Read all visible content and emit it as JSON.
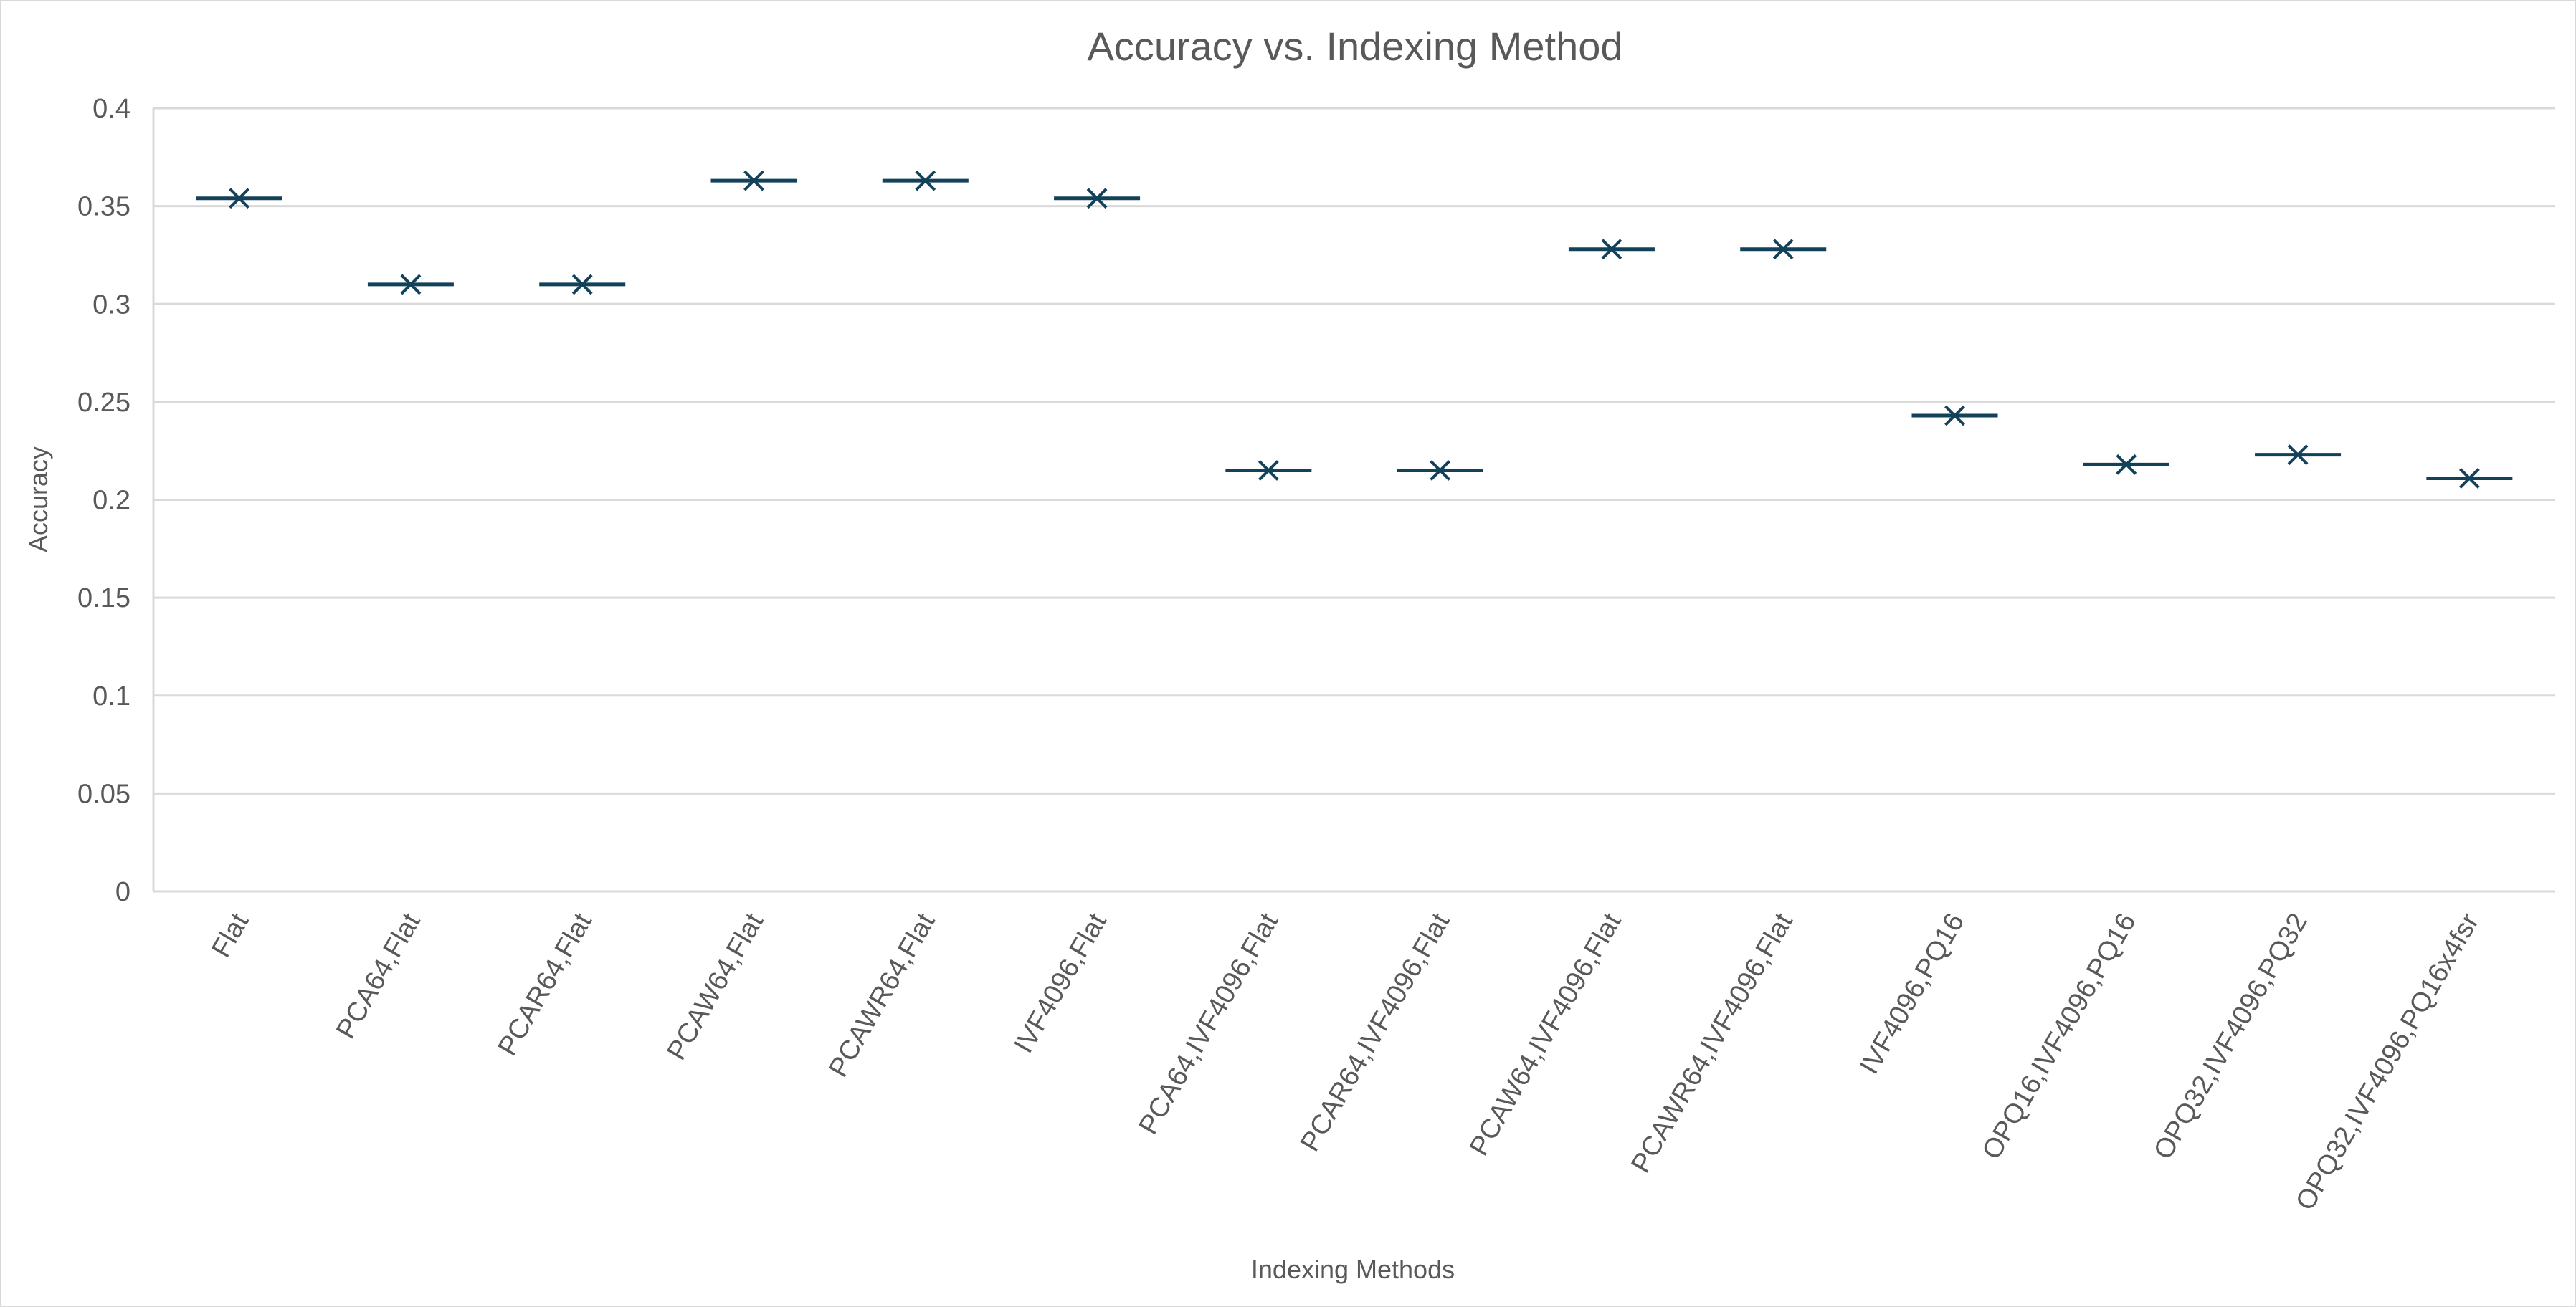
{
  "chart_data": {
    "type": "scatter",
    "title": "Accuracy vs. Indexing Method",
    "xlabel": "Indexing Methods",
    "ylabel": "Accuracy",
    "ylim": [
      0,
      0.4
    ],
    "yticks": [
      "0",
      "0.05",
      "0.1",
      "0.15",
      "0.2",
      "0.25",
      "0.3",
      "0.35",
      "0.4"
    ],
    "grid": true,
    "legend": "none",
    "marker": "x-with-horizontal-bar",
    "series_color": "#12425a",
    "categories": [
      "Flat",
      "PCA64,Flat",
      "PCAR64,Flat",
      "PCAW64,Flat",
      "PCAWR64,Flat",
      "IVF4096,Flat",
      "PCA64,IVF4096,Flat",
      "PCAR64,IVF4096,Flat",
      "PCAW64,IVF4096,Flat",
      "PCAWR64,IVF4096,Flat",
      "IVF4096,PQ16",
      "OPQ16,IVF4096,PQ16",
      "OPQ32,IVF4096,PQ32",
      "OPQ32,IVF4096,PQ16x4fsr"
    ],
    "values": [
      0.354,
      0.31,
      0.31,
      0.363,
      0.363,
      0.354,
      0.215,
      0.215,
      0.328,
      0.328,
      0.243,
      0.218,
      0.223,
      0.211
    ]
  }
}
